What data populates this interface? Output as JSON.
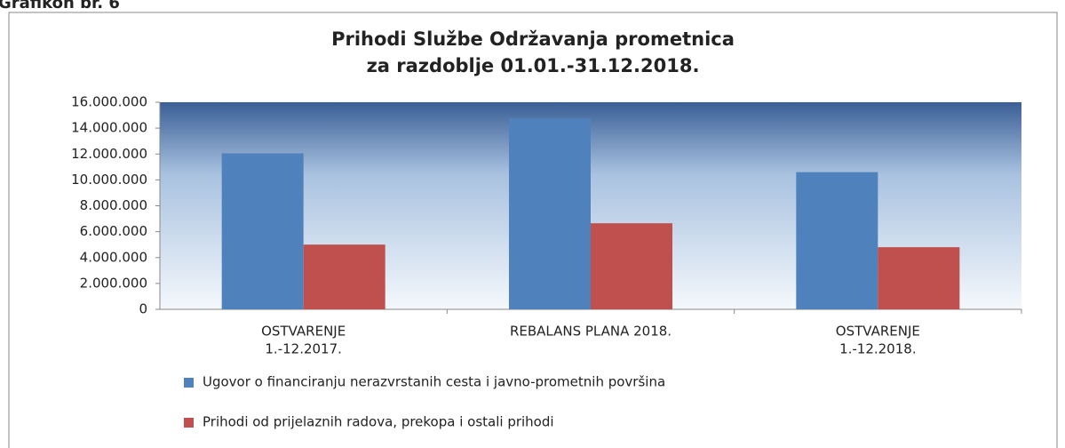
{
  "caption": "Grafikon br. 6",
  "chart_data": {
    "type": "bar",
    "title": [
      "Prihodi Službe Održavanja prometnica",
      "za razdoblje 01.01.-31.12.2018."
    ],
    "categories": [
      [
        "OSTVARENJE",
        "1.-12.2017."
      ],
      [
        "REBALANS PLANA 2018."
      ],
      [
        "OSTVARENJE",
        "1.-12.2018."
      ]
    ],
    "series": [
      {
        "name": "Ugovor o financiranju nerazvrstanih cesta i javno-prometnih površina",
        "color": "#4f81bd",
        "values": [
          12050000,
          14750000,
          10600000
        ]
      },
      {
        "name": "Prihodi od prijelaznih radova, prekopa i ostali prihodi",
        "color": "#c0504d",
        "values": [
          5000000,
          6650000,
          4800000
        ]
      }
    ],
    "ylim": [
      0,
      16000000
    ],
    "yticks": [
      0,
      {
        "value": 2000000,
        "label": "2.000.000"
      },
      {
        "value": 4000000,
        "label": "4.000.000"
      },
      {
        "value": 6000000,
        "label": "6.000.000"
      },
      {
        "value": 8000000,
        "label": "8.000.000"
      },
      {
        "value": 10000000,
        "label": "10.000.000"
      },
      {
        "value": 12000000,
        "label": "12.000.000"
      },
      {
        "value": 14000000,
        "label": "14.000.000"
      },
      {
        "value": 16000000,
        "label": "16.000.000"
      }
    ],
    "legend": "bottom-left"
  }
}
